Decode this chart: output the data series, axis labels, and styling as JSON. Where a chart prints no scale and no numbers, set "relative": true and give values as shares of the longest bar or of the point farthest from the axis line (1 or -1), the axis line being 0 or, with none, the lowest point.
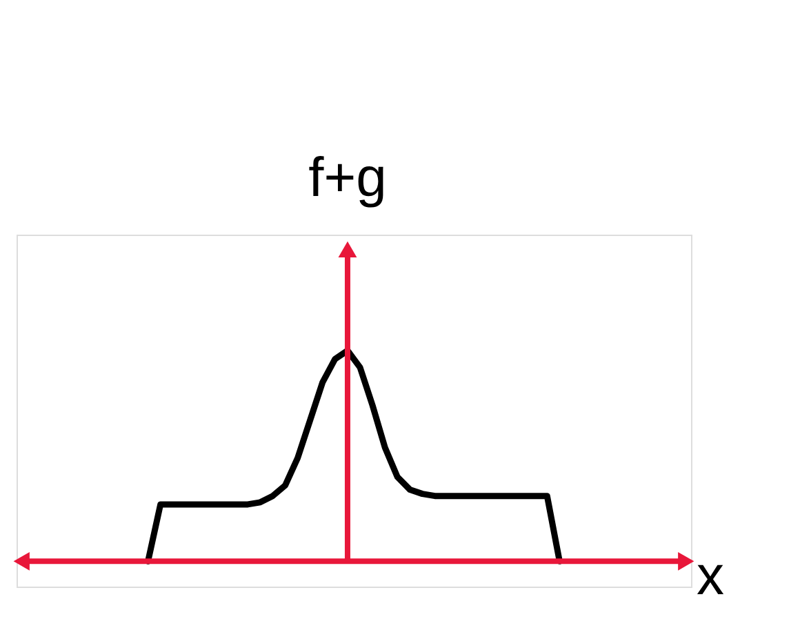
{
  "chart_data": {
    "type": "line",
    "relative": true,
    "ylabel": "f+g",
    "xlabel": "x",
    "line_style": "solid",
    "marker": "none",
    "grid": false,
    "categories": [
      null,
      null,
      null,
      null,
      null,
      null,
      null,
      null,
      null,
      null,
      null,
      null,
      null,
      null,
      null,
      null,
      null,
      null,
      null,
      null,
      null,
      null,
      null,
      null,
      null,
      null,
      null,
      null,
      null,
      null,
      null,
      null,
      null,
      null
    ],
    "series": [
      {
        "color": "#000000",
        "values": [
          0,
          0.27,
          0.27,
          0.27,
          0.27,
          0.27,
          0.27,
          0.27,
          0.27,
          0.28,
          0.31,
          0.36,
          0.49,
          0.67,
          0.85,
          0.96,
          1.0,
          0.92,
          0.74,
          0.54,
          0.4,
          0.34,
          0.32,
          0.31,
          0.31,
          0.31,
          0.31,
          0.31,
          0.31,
          0.31,
          0.31,
          0.31,
          0.31,
          0
        ]
      }
    ]
  }
}
